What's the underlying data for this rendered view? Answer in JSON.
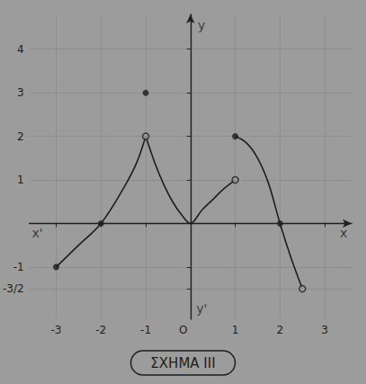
{
  "chart_data": {
    "type": "line",
    "title": "ΣΧΗΜΑ ΙΙΙ",
    "xlim": [
      -3.6,
      3.6
    ],
    "ylim": [
      -2.2,
      4.8
    ],
    "xticks": [
      -3,
      -2,
      -1,
      {
        "value": 0,
        "label": "O"
      },
      1,
      2,
      3
    ],
    "yticks": [
      {
        "value": -1.5,
        "label": "-3/2"
      },
      -1,
      1,
      2,
      3,
      4
    ],
    "grid": true,
    "series": [
      {
        "type": "line",
        "color": "#1e1e1e",
        "x": [
          -3,
          -2.5,
          -2,
          -1.5,
          -1.2,
          -1
        ],
        "values": [
          -1,
          -0.5,
          0,
          0.8,
          1.4,
          2
        ]
      },
      {
        "type": "line",
        "color": "#1e1e1e",
        "x": [
          -1,
          -0.8,
          -0.6,
          -0.4,
          -0.2,
          0,
          0.25,
          0.5,
          0.75,
          1
        ],
        "values": [
          2,
          1.4,
          0.9,
          0.5,
          0.2,
          0,
          0.3,
          0.55,
          0.8,
          1
        ]
      },
      {
        "type": "line",
        "color": "#1e1e1e",
        "x": [
          1,
          1.25,
          1.5,
          1.75,
          2,
          2.25,
          2.5
        ],
        "values": [
          2,
          1.85,
          1.5,
          0.9,
          0,
          -0.8,
          -1.5
        ]
      },
      {
        "type": "scatter",
        "marker": "filled",
        "color": "#1e1e1e",
        "x": [
          -3,
          -2,
          -1,
          1,
          2
        ],
        "values": [
          -1,
          0,
          3,
          2,
          0
        ]
      },
      {
        "type": "scatter",
        "marker": "open",
        "color": "#1e1e1e",
        "x": [
          -1,
          1,
          2.5
        ],
        "values": [
          2,
          1,
          -1.5
        ]
      }
    ],
    "annotations": [
      {
        "text": "x'",
        "x": -3.42,
        "y": -0.22
      },
      {
        "text": "x",
        "x": 3.42,
        "y": -0.22
      },
      {
        "text": "y",
        "x": 0.25,
        "y": 4.55
      },
      {
        "text": "y'",
        "x": 0.25,
        "y": -1.95
      }
    ]
  }
}
